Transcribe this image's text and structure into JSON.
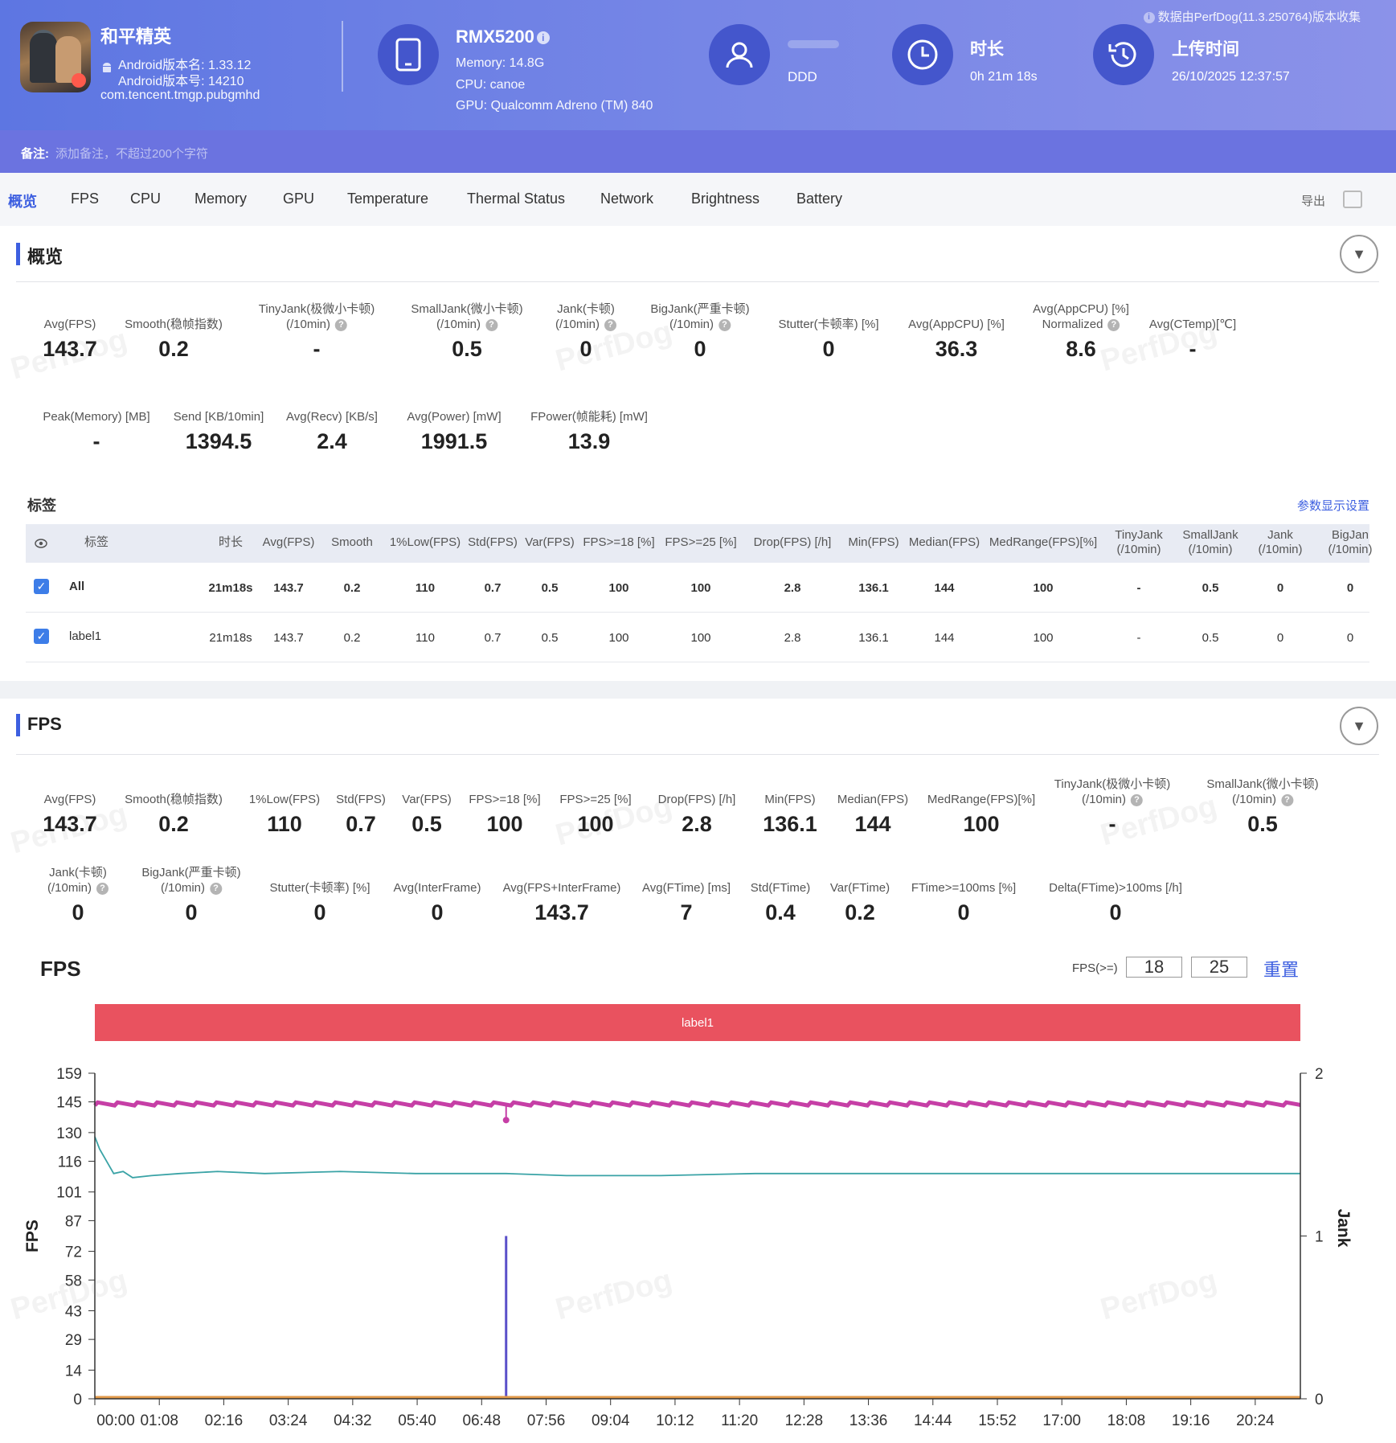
{
  "header": {
    "app_name": "和平精英",
    "android_version_name": "Android版本名: 1.33.12",
    "android_version_code": "Android版本号: 14210",
    "package": "com.tencent.tmgp.pubgmhd",
    "device_name": "RMX5200",
    "memory": "Memory: 14.8G",
    "cpu": "CPU: canoe",
    "gpu": "GPU: Qualcomm Adreno (TM) 840",
    "user": "DDD",
    "duration_title": "时长",
    "duration_value": "0h 21m 18s",
    "upload_title": "上传时间",
    "upload_value": "26/10/2025 12:37:57",
    "collect_note": "数据由PerfDog(11.3.250764)版本收集",
    "note_label": "备注:",
    "note_placeholder": "添加备注，不超过200个字符"
  },
  "tabs": [
    "概览",
    "FPS",
    "CPU",
    "Memory",
    "GPU",
    "Temperature",
    "Thermal Status",
    "Network",
    "Brightness",
    "Battery"
  ],
  "export_label": "导出",
  "overview": {
    "title": "概览",
    "row1": [
      {
        "label": "Avg(FPS)",
        "value": "143.7"
      },
      {
        "label": "Smooth(稳帧指数)",
        "value": "0.2"
      },
      {
        "label": "TinyJank(极微小卡顿)",
        "label2": "(/10min)",
        "value": "-"
      },
      {
        "label": "SmallJank(微小卡顿)",
        "label2": "(/10min)",
        "value": "0.5"
      },
      {
        "label": "Jank(卡顿)",
        "label2": "(/10min)",
        "value": "0"
      },
      {
        "label": "BigJank(严重卡顿)",
        "label2": "(/10min)",
        "value": "0"
      },
      {
        "label": "Stutter(卡顿率) [%]",
        "value": "0"
      },
      {
        "label": "Avg(AppCPU) [%]",
        "value": "36.3"
      },
      {
        "label": "Avg(AppCPU) [%]",
        "label2": "Normalized",
        "value": "8.6"
      },
      {
        "label": "Avg(CTemp)[℃]",
        "value": "-"
      }
    ],
    "row2": [
      {
        "label": "Peak(Memory) [MB]",
        "value": "-"
      },
      {
        "label": "Send [KB/10min]",
        "value": "1394.5"
      },
      {
        "label": "Avg(Recv) [KB/s]",
        "value": "2.4"
      },
      {
        "label": "Avg(Power) [mW]",
        "value": "1991.5"
      },
      {
        "label": "FPower(帧能耗) [mW]",
        "value": "13.9"
      }
    ]
  },
  "tags": {
    "title": "标签",
    "settings_link": "参数显示设置",
    "columns": [
      "标签",
      "时长",
      "Avg(FPS)",
      "Smooth",
      "1%Low(FPS)",
      "Std(FPS)",
      "Var(FPS)",
      "FPS>=18 [%]",
      "FPS>=25 [%]",
      "Drop(FPS) [/h]",
      "Min(FPS)",
      "Median(FPS)",
      "MedRange(FPS)[%]",
      "TinyJank",
      "SmallJank",
      "Jank",
      "BigJan"
    ],
    "col_sub": "(/10min)",
    "rows": [
      {
        "name": "All",
        "cells": [
          "21m18s",
          "143.7",
          "0.2",
          "110",
          "0.7",
          "0.5",
          "100",
          "100",
          "2.8",
          "136.1",
          "144",
          "100",
          "-",
          "0.5",
          "0",
          "0"
        ]
      },
      {
        "name": "label1",
        "cells": [
          "21m18s",
          "143.7",
          "0.2",
          "110",
          "0.7",
          "0.5",
          "100",
          "100",
          "2.8",
          "136.1",
          "144",
          "100",
          "-",
          "0.5",
          "0",
          "0"
        ]
      }
    ]
  },
  "fps_section": {
    "title": "FPS",
    "row1": [
      {
        "label": "Avg(FPS)",
        "value": "143.7"
      },
      {
        "label": "Smooth(稳帧指数)",
        "value": "0.2"
      },
      {
        "label": "1%Low(FPS)",
        "value": "110"
      },
      {
        "label": "Std(FPS)",
        "value": "0.7"
      },
      {
        "label": "Var(FPS)",
        "value": "0.5"
      },
      {
        "label": "FPS>=18 [%]",
        "value": "100"
      },
      {
        "label": "FPS>=25 [%]",
        "value": "100"
      },
      {
        "label": "Drop(FPS) [/h]",
        "value": "2.8"
      },
      {
        "label": "Min(FPS)",
        "value": "136.1"
      },
      {
        "label": "Median(FPS)",
        "value": "144"
      },
      {
        "label": "MedRange(FPS)[%]",
        "value": "100"
      },
      {
        "label": "TinyJank(极微小卡顿)",
        "label2": "(/10min)",
        "value": "-"
      },
      {
        "label": "SmallJank(微小卡顿)",
        "label2": "(/10min)",
        "value": "0.5"
      }
    ],
    "row2": [
      {
        "label": "Jank(卡顿)",
        "label2": "(/10min)",
        "value": "0"
      },
      {
        "label": "BigJank(严重卡顿)",
        "label2": "(/10min)",
        "value": "0"
      },
      {
        "label": "Stutter(卡顿率) [%]",
        "value": "0"
      },
      {
        "label": "Avg(InterFrame)",
        "value": "0"
      },
      {
        "label": "Avg(FPS+InterFrame)",
        "value": "143.7"
      },
      {
        "label": "Avg(FTime) [ms]",
        "value": "7"
      },
      {
        "label": "Std(FTime)",
        "value": "0.4"
      },
      {
        "label": "Var(FTime)",
        "value": "0.2"
      },
      {
        "label": "FTime>=100ms [%]",
        "value": "0"
      },
      {
        "label": "Delta(FTime)>100ms [/h]",
        "value": "0"
      }
    ],
    "chart_title": "FPS",
    "fps_threshold_label": "FPS(>=)",
    "threshold1": "18",
    "threshold2": "25",
    "reset_label": "重置",
    "band_label": "label1"
  },
  "chart_data": {
    "type": "line",
    "title": "FPS",
    "ylabel": "FPS",
    "y2label": "Jank",
    "ylim": [
      0,
      159
    ],
    "y2lim": [
      0,
      2
    ],
    "yticks": [
      "0",
      "14",
      "29",
      "43",
      "58",
      "72",
      "87",
      "101",
      "116",
      "130",
      "145",
      "159"
    ],
    "y2ticks": [
      "0",
      "1",
      "2"
    ],
    "xticks": [
      "00:00",
      "01:08",
      "02:16",
      "03:24",
      "04:32",
      "05:40",
      "06:48",
      "07:56",
      "09:04",
      "10:12",
      "11:20",
      "12:28",
      "13:36",
      "14:44",
      "15:52",
      "17:00",
      "18:08",
      "19:16",
      "20:24"
    ],
    "duration_seconds": 1278,
    "series": [
      {
        "name": "FPS",
        "color": "#c63fa6",
        "baseline": 144,
        "dip": {
          "time_s": 436,
          "value": 136.1
        }
      },
      {
        "name": "1%Low(FPS)",
        "color": "#3aa3a6",
        "points": [
          [
            0,
            128
          ],
          [
            5,
            122
          ],
          [
            10,
            118
          ],
          [
            20,
            110
          ],
          [
            30,
            111
          ],
          [
            40,
            108
          ],
          [
            60,
            109
          ],
          [
            90,
            110
          ],
          [
            130,
            111
          ],
          [
            180,
            110
          ],
          [
            260,
            111
          ],
          [
            340,
            110
          ],
          [
            436,
            110
          ],
          [
            500,
            109
          ],
          [
            600,
            109
          ],
          [
            700,
            110
          ],
          [
            900,
            110
          ],
          [
            1100,
            110
          ],
          [
            1278,
            110
          ]
        ]
      },
      {
        "name": "Jank",
        "color": "#5a4fc9",
        "spike": {
          "time_s": 436,
          "value": 1
        }
      },
      {
        "name": "Stutter",
        "color": "#e29a4a",
        "baseline": 0
      }
    ]
  }
}
